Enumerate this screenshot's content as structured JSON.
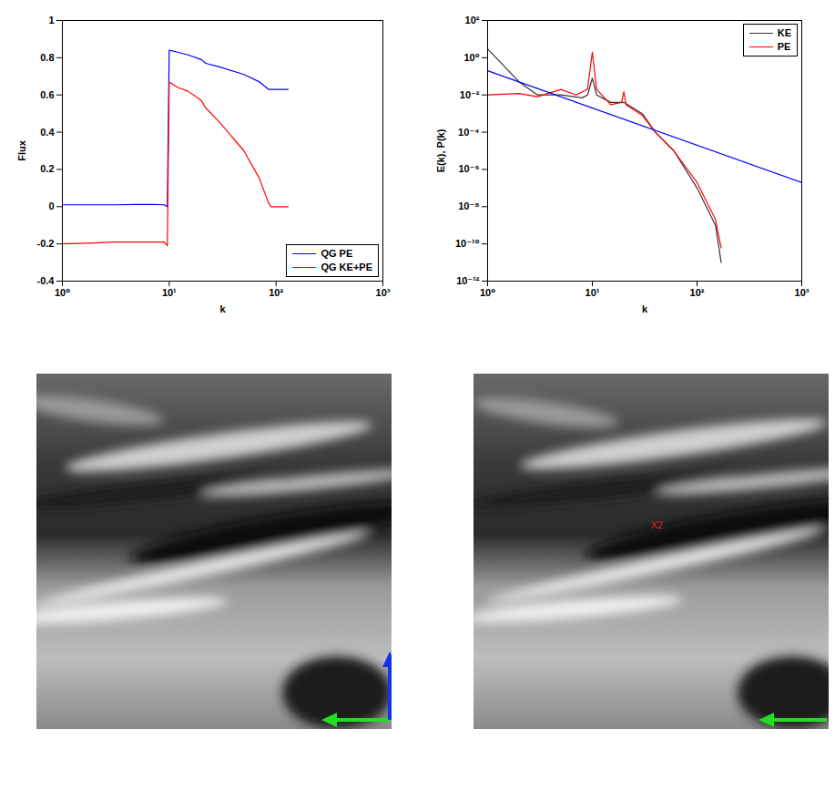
{
  "chart_data": [
    {
      "type": "line",
      "log": "x",
      "xlabel": "k",
      "ylabel": "Flux",
      "xlim": [
        1,
        1000
      ],
      "xticks": [
        {
          "value": 1,
          "label": "10⁰"
        },
        {
          "value": 10,
          "label": "10¹"
        },
        {
          "value": 100,
          "label": "10²"
        },
        {
          "value": 1000,
          "label": "10³"
        }
      ],
      "ylim": [
        -0.4,
        1
      ],
      "yticks": [
        -0.4,
        -0.2,
        0,
        0.2,
        0.4,
        0.6,
        0.8,
        1
      ],
      "legend": "bottom-right",
      "x": [
        1,
        2,
        3,
        5,
        7,
        9,
        9.6,
        10,
        12,
        15,
        20,
        22,
        30,
        50,
        70,
        85,
        90,
        130
      ],
      "series": [
        {
          "name": "QG PE",
          "color": "#0000ff",
          "values": [
            0.01,
            0.01,
            0.01,
            0.012,
            0.012,
            0.01,
            0.0,
            0.84,
            0.83,
            0.815,
            0.79,
            0.77,
            0.75,
            0.71,
            0.67,
            0.63,
            0.63,
            0.63
          ]
        },
        {
          "name": "QG KE+PE",
          "color": "#ff0000",
          "values": [
            -0.2,
            -0.195,
            -0.19,
            -0.19,
            -0.19,
            -0.19,
            -0.21,
            0.67,
            0.64,
            0.62,
            0.57,
            0.53,
            0.45,
            0.3,
            0.15,
            0.02,
            0.0,
            0.0
          ]
        }
      ]
    },
    {
      "type": "line",
      "log": true,
      "xlabel": "k",
      "ylabel": "E(k), P(k)",
      "xlim": [
        1,
        1000
      ],
      "xticks": [
        {
          "value": 1,
          "label": "10⁰"
        },
        {
          "value": 10,
          "label": "10¹"
        },
        {
          "value": 100,
          "label": "10²"
        },
        {
          "value": 1000,
          "label": "10³"
        }
      ],
      "ylim": [
        1e-12,
        100
      ],
      "yticks": [
        {
          "value": 1e-12,
          "label": "10⁻¹²"
        },
        {
          "value": 1e-10,
          "label": "10⁻¹⁰"
        },
        {
          "value": 1e-08,
          "label": "10⁻⁸"
        },
        {
          "value": 1e-06,
          "label": "10⁻⁶"
        },
        {
          "value": 0.0001,
          "label": "10⁻⁴"
        },
        {
          "value": 0.01,
          "label": "10⁻²"
        },
        {
          "value": 1,
          "label": "10⁰"
        },
        {
          "value": 100,
          "label": "10²"
        }
      ],
      "legend": "top-right",
      "series": [
        {
          "name": "KE",
          "color": "#333333",
          "x": [
            1,
            2,
            3,
            5,
            8,
            9,
            10,
            11,
            15,
            20,
            30,
            40,
            60,
            100,
            150,
            170
          ],
          "values": [
            3,
            0.05,
            0.01,
            0.01,
            0.007,
            0.01,
            0.08,
            0.01,
            0.004,
            0.004,
            0.001,
            0.0001,
            1e-05,
            1e-07,
            1e-09,
            1e-11
          ]
        },
        {
          "name": "PE",
          "color": "#ff0000",
          "x": [
            1,
            2,
            3,
            5,
            7,
            9,
            10,
            11,
            15,
            19,
            20,
            21,
            30,
            40,
            60,
            100,
            150,
            170
          ],
          "values": [
            0.01,
            0.012,
            0.008,
            0.02,
            0.01,
            0.02,
            2,
            0.02,
            0.003,
            0.004,
            0.015,
            0.003,
            0.0008,
            0.0001,
            1e-05,
            2e-07,
            2e-09,
            6e-11
          ]
        },
        {
          "color": "#0000ff",
          "x": [
            1,
            1000
          ],
          "values": [
            0.2,
            2e-07
          ]
        }
      ]
    }
  ],
  "image_annotation": "X2"
}
